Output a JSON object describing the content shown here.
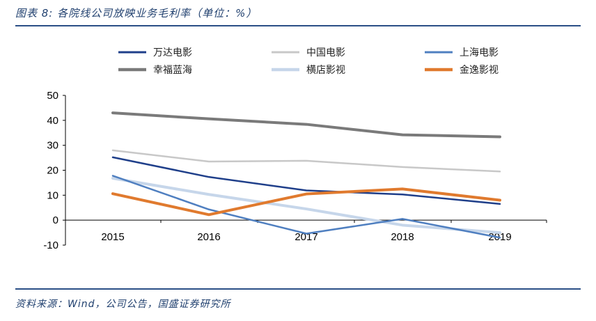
{
  "header": {
    "figure_title": "图表 8: 各院线公司放映业务毛利率（单位：%）"
  },
  "footer": {
    "source": "资料来源：Wind，公司公告，国盛证券研究所"
  },
  "chart_data": {
    "type": "line",
    "title": "图表 8: 各院线公司放映业务毛利率（单位：%）",
    "xlabel": "",
    "ylabel": "",
    "categories": [
      "2015",
      "2016",
      "2017",
      "2018",
      "2019"
    ],
    "ylim": [
      -10,
      50
    ],
    "yticks": [
      "50",
      "40",
      "30",
      "20",
      "10",
      "0",
      "-10"
    ],
    "grid": false,
    "legend_position": "top",
    "series": [
      {
        "name": "万达电影",
        "color": "#1f3f8a",
        "values": [
          25.2,
          17.3,
          11.9,
          10.3,
          6.5
        ]
      },
      {
        "name": "中国电影",
        "color": "#c8c8c8",
        "values": [
          28.0,
          23.5,
          23.8,
          21.3,
          19.5
        ]
      },
      {
        "name": "上海电影",
        "color": "#4f7fc0",
        "values": [
          17.8,
          4.3,
          -5.4,
          0.5,
          -7.0
        ]
      },
      {
        "name": "幸福蓝海",
        "color": "#7a7a7a",
        "values": [
          43.0,
          40.6,
          38.4,
          34.2,
          33.4
        ]
      },
      {
        "name": "横店影视",
        "color": "#c6d6ea",
        "values": [
          16.8,
          10.3,
          4.5,
          -2.0,
          -5.0
        ]
      },
      {
        "name": "金逸影视",
        "color": "#e07a2e",
        "values": [
          10.6,
          2.2,
          10.5,
          12.5,
          8.0
        ]
      }
    ]
  }
}
